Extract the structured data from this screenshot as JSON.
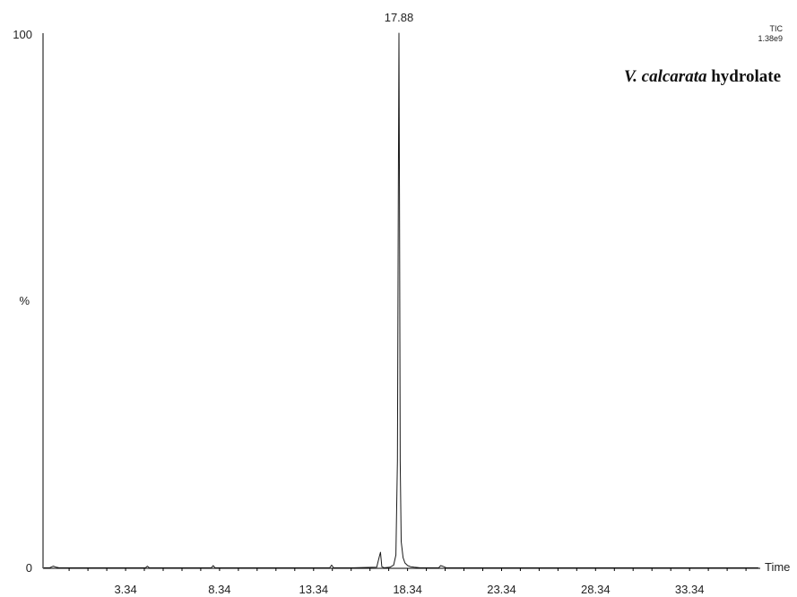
{
  "chart_data": {
    "type": "line",
    "title": "",
    "annotation_name_italic": "V. calcarata",
    "annotation_name_rest": " hydrolate",
    "trace_label": "TIC",
    "trace_intensity": "1.38e9",
    "xlabel": "Time",
    "ylabel": "%",
    "xlim": [
      -1.05,
      37.1
    ],
    "ylim": [
      0,
      100
    ],
    "y_tick_labels": [
      "0",
      "%",
      "100"
    ],
    "x_tick_labels": [
      "3.34",
      "8.34",
      "13.34",
      "18.34",
      "23.34",
      "28.34",
      "33.34"
    ],
    "x_tick_values": [
      3.34,
      8.34,
      13.34,
      18.34,
      23.34,
      28.34,
      33.34
    ],
    "peak_label": "17.88",
    "peak_label_x": 17.88,
    "series": [
      {
        "x": [
          -1.0,
          -0.7,
          -0.5,
          -0.35,
          -0.2,
          0.5,
          1.5,
          3.0,
          4.4,
          4.5,
          4.6,
          6.0,
          7.9,
          8.0,
          8.1,
          10.0,
          12.0,
          14.2,
          14.3,
          14.4,
          15.5,
          16.7,
          16.85,
          16.9,
          16.97,
          17.1,
          17.4,
          17.6,
          17.72,
          17.8,
          17.85,
          17.88,
          17.91,
          17.95,
          18.0,
          18.1,
          18.2,
          18.35,
          18.5,
          18.7,
          19.0,
          19.5,
          20.0,
          20.1,
          20.2,
          20.4,
          21.0,
          25.0,
          30.0,
          37.0
        ],
        "y": [
          0.1,
          0.1,
          0.4,
          0.2,
          0.1,
          0.1,
          0.1,
          0.1,
          0.1,
          0.4,
          0.1,
          0.1,
          0.1,
          0.5,
          0.1,
          0.1,
          0.1,
          0.1,
          0.6,
          0.1,
          0.1,
          0.2,
          2.4,
          3.0,
          0.3,
          0.1,
          0.2,
          0.6,
          2.5,
          20.0,
          70.0,
          100.0,
          70.0,
          20.0,
          5.0,
          2.0,
          1.0,
          0.5,
          0.3,
          0.2,
          0.1,
          0.1,
          0.1,
          0.5,
          0.4,
          0.1,
          0.1,
          0.1,
          0.1,
          0.1
        ]
      }
    ],
    "colors": {
      "line": "#1a1a1a",
      "axis": "#000000",
      "text": "#222222"
    },
    "grid": false
  }
}
